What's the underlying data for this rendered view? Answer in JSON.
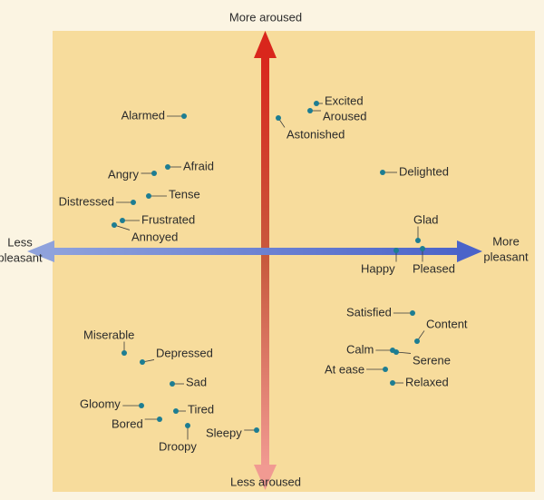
{
  "axes": {
    "top": "More aroused",
    "bottom": "Less aroused",
    "left": [
      "Less",
      "pleasant"
    ],
    "right": [
      "More",
      "pleasant"
    ]
  },
  "emotions": [
    "Excited",
    "Aroused",
    "Astonished",
    "Alarmed",
    "Afraid",
    "Angry",
    "Delighted",
    "Tense",
    "Distressed",
    "Frustrated",
    "Annoyed",
    "Glad",
    "Happy",
    "Pleased",
    "Satisfied",
    "Content",
    "Calm",
    "Serene",
    "At ease",
    "Relaxed",
    "Miserable",
    "Depressed",
    "Sad",
    "Gloomy",
    "Tired",
    "Bored",
    "Droopy",
    "Sleepy"
  ]
}
